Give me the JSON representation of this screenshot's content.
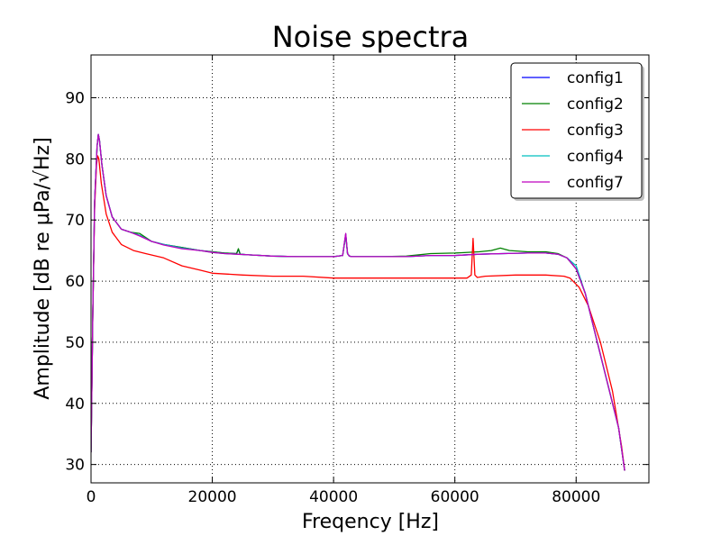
{
  "chart_data": {
    "type": "line",
    "title": "Noise spectra",
    "xlabel": "Freqency [Hz]",
    "ylabel": "Amplitude [dB re μPa/√Hz]",
    "xlim": [
      0,
      92000
    ],
    "ylim": [
      27,
      97
    ],
    "x_ticks": [
      0,
      20000,
      40000,
      60000,
      80000
    ],
    "y_ticks": [
      30,
      40,
      50,
      60,
      70,
      80,
      90
    ],
    "grid": true,
    "legend_position": "top-right",
    "series": [
      {
        "name": "config1",
        "color": "#0000ff",
        "x": [
          0,
          300,
          600,
          1000,
          1200,
          1400,
          1800,
          2500,
          3500,
          5000,
          6500,
          8000,
          10000,
          12000,
          15000,
          18000,
          20000,
          22000,
          24000,
          24300,
          24600,
          26000,
          30000,
          34000,
          38000,
          40000,
          41500,
          42000,
          42300,
          42600,
          43000,
          45000,
          48000,
          52000,
          56000,
          60000,
          64000,
          68000,
          72000,
          75000,
          77000,
          78500,
          80000,
          81500,
          83000,
          85000,
          87000,
          88000
        ],
        "values": [
          32,
          55,
          73,
          82,
          84,
          83,
          79,
          74,
          70.5,
          68.5,
          68,
          67.5,
          66.5,
          66,
          65.5,
          65,
          64.8,
          64.6,
          64.5,
          65.2,
          64.4,
          64.3,
          64.1,
          64.0,
          64.0,
          64.0,
          64.2,
          67.7,
          64.5,
          64.1,
          64.0,
          64.0,
          64.0,
          64.0,
          64.2,
          64.2,
          64.4,
          64.5,
          64.6,
          64.6,
          64.4,
          63.8,
          62,
          58,
          52,
          44,
          36,
          29
        ]
      },
      {
        "name": "config2",
        "color": "#008000",
        "x": [
          0,
          300,
          600,
          1000,
          1200,
          1400,
          1800,
          2500,
          3500,
          5000,
          6500,
          8000,
          10000,
          12000,
          15000,
          18000,
          20000,
          22000,
          24000,
          24300,
          24600,
          26000,
          30000,
          34000,
          38000,
          40000,
          41500,
          42000,
          42300,
          42600,
          43000,
          45000,
          48000,
          52000,
          56000,
          60000,
          64000,
          66000,
          67500,
          69000,
          72000,
          75000,
          77000,
          78500,
          80000,
          81500,
          83000,
          85000,
          87000,
          88000
        ],
        "values": [
          32,
          55,
          73,
          82,
          84,
          83,
          79,
          74,
          70.5,
          68.5,
          68,
          67.8,
          66.5,
          66,
          65.5,
          65,
          64.8,
          64.6,
          64.5,
          65.3,
          64.4,
          64.3,
          64.1,
          64.0,
          64.0,
          64.0,
          64.2,
          67.5,
          64.5,
          64.1,
          64.0,
          64.0,
          64.0,
          64.1,
          64.5,
          64.6,
          64.8,
          65.0,
          65.4,
          65.0,
          64.8,
          64.8,
          64.5,
          63.8,
          62,
          58,
          52,
          44,
          36,
          29
        ]
      },
      {
        "name": "config3",
        "color": "#ff0000",
        "x": [
          0,
          300,
          600,
          900,
          1100,
          1300,
          1700,
          2500,
          3500,
          5000,
          7000,
          9000,
          12000,
          15000,
          18000,
          20000,
          25000,
          30000,
          35000,
          40000,
          45000,
          50000,
          55000,
          60000,
          62000,
          62700,
          63000,
          63300,
          63700,
          65000,
          70000,
          75000,
          78000,
          79000,
          80500,
          82000,
          84000,
          86000,
          87500,
          88000
        ],
        "values": [
          32,
          55,
          72,
          79,
          80.5,
          80,
          76,
          71,
          68,
          66,
          65,
          64.5,
          63.8,
          62.5,
          61.8,
          61.3,
          61.0,
          60.8,
          60.8,
          60.5,
          60.5,
          60.5,
          60.5,
          60.5,
          60.5,
          61.0,
          67.0,
          61.0,
          60.6,
          60.8,
          61.0,
          61.0,
          60.8,
          60.5,
          59.0,
          56.0,
          50.0,
          42.0,
          33.0,
          29
        ]
      },
      {
        "name": "config4",
        "color": "#00bfbf",
        "x": [
          0,
          300,
          600,
          1000,
          1200,
          1400,
          1800,
          2500,
          3500,
          5000,
          6500,
          8000,
          10000,
          12000,
          15000,
          18000,
          20000,
          22000,
          24000,
          26000,
          30000,
          34000,
          38000,
          40000,
          41500,
          42000,
          42300,
          42600,
          43000,
          45000,
          48000,
          52000,
          56000,
          60000,
          64000,
          68000,
          72000,
          75000,
          77000,
          78500,
          80000,
          81500,
          83000,
          85000,
          87000,
          88000
        ],
        "values": [
          32,
          55,
          73,
          82,
          84,
          83,
          79,
          74,
          70.5,
          68.5,
          68,
          67.5,
          66.5,
          66,
          65.4,
          65,
          64.7,
          64.5,
          64.4,
          64.3,
          64.1,
          64.0,
          64.0,
          64.0,
          64.2,
          67.6,
          64.5,
          64.1,
          64.0,
          64.0,
          64.0,
          64.0,
          64.2,
          64.2,
          64.4,
          64.5,
          64.6,
          64.6,
          64.4,
          63.8,
          62.5,
          58,
          52,
          44,
          36,
          29
        ]
      },
      {
        "name": "config7",
        "color": "#bf00bf",
        "x": [
          0,
          300,
          600,
          1000,
          1200,
          1400,
          1800,
          2500,
          3500,
          5000,
          6500,
          8000,
          10000,
          12000,
          15000,
          18000,
          20000,
          22000,
          24000,
          26000,
          30000,
          34000,
          38000,
          40000,
          41500,
          42000,
          42300,
          42600,
          43000,
          45000,
          48000,
          52000,
          56000,
          60000,
          64000,
          68000,
          72000,
          75000,
          77000,
          78500,
          80000,
          81500,
          83000,
          85000,
          87000,
          88000
        ],
        "values": [
          32,
          55,
          73,
          82,
          84,
          83,
          79,
          74,
          70.5,
          68.5,
          68,
          67.4,
          66.5,
          65.9,
          65.3,
          65,
          64.7,
          64.5,
          64.4,
          64.3,
          64.1,
          64.0,
          64.0,
          64.0,
          64.2,
          67.8,
          64.5,
          64.1,
          64.0,
          64.0,
          64.0,
          64.0,
          64.2,
          64.2,
          64.4,
          64.5,
          64.6,
          64.6,
          64.4,
          63.8,
          62,
          58,
          52,
          44,
          36,
          29
        ]
      }
    ]
  }
}
